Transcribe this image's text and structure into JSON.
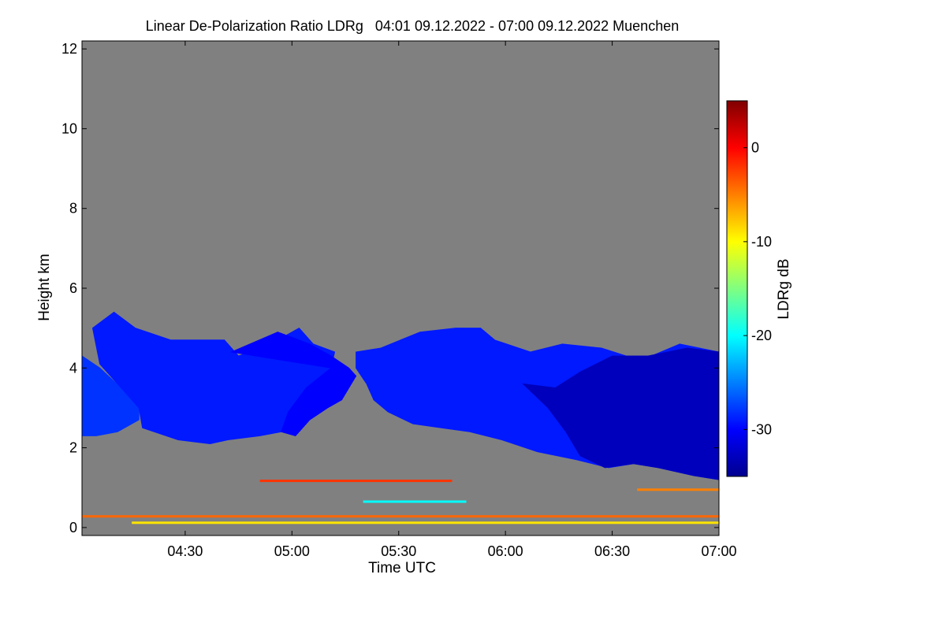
{
  "chart_data": {
    "type": "heatmap",
    "title": "Linear De-Polarization Ratio LDRg   04:01 09.12.2022 - 07:00 09.12.2022 Muenchen",
    "xlabel": "Time UTC",
    "ylabel": "Height km",
    "x_range_min": [
      241,
      420
    ],
    "x_ticks": [
      {
        "label": "04:30",
        "value": 270
      },
      {
        "label": "05:00",
        "value": 300
      },
      {
        "label": "05:30",
        "value": 330
      },
      {
        "label": "06:00",
        "value": 360
      },
      {
        "label": "06:30",
        "value": 390
      },
      {
        "label": "07:00",
        "value": 420
      }
    ],
    "ylim": [
      -0.2,
      12.2
    ],
    "y_ticks": [
      0,
      2,
      4,
      6,
      8,
      10,
      12
    ],
    "colorbar": {
      "label": "LDRg dB",
      "range": [
        -35,
        5
      ],
      "ticks": [
        0,
        -10,
        -20,
        -30
      ]
    },
    "background_color": "#808080",
    "cloud_regions": [
      {
        "name": "early-cloud",
        "ldr_db": -28,
        "points": [
          [
            241,
            4.3
          ],
          [
            246,
            4.0
          ],
          [
            252,
            3.5
          ],
          [
            257,
            3.0
          ],
          [
            257,
            2.7
          ],
          [
            251,
            2.4
          ],
          [
            245,
            2.3
          ],
          [
            241,
            2.3
          ]
        ]
      },
      {
        "name": "cirrus-fallstreak-1",
        "ldr_db": -29,
        "points": [
          [
            244,
            5.0
          ],
          [
            250,
            5.4
          ],
          [
            256,
            5.0
          ],
          [
            266,
            4.7
          ],
          [
            281,
            4.7
          ],
          [
            285,
            4.3
          ],
          [
            294,
            4.6
          ],
          [
            302,
            5.0
          ],
          [
            306,
            4.6
          ],
          [
            312,
            4.4
          ],
          [
            311,
            4.0
          ],
          [
            304,
            3.5
          ],
          [
            299,
            2.9
          ],
          [
            297,
            2.4
          ],
          [
            291,
            2.3
          ],
          [
            282,
            2.2
          ],
          [
            277,
            2.1
          ],
          [
            268,
            2.2
          ],
          [
            258,
            2.5
          ],
          [
            257,
            3.0
          ],
          [
            252,
            3.5
          ],
          [
            246,
            4.1
          ]
        ]
      },
      {
        "name": "cirrus-fallstreak-2",
        "ldr_db": -30,
        "points": [
          [
            283,
            4.4
          ],
          [
            296,
            4.9
          ],
          [
            305,
            4.6
          ],
          [
            311,
            4.3
          ],
          [
            316,
            4.0
          ],
          [
            318,
            3.8
          ],
          [
            314,
            3.2
          ],
          [
            310,
            3.0
          ],
          [
            305,
            2.7
          ],
          [
            301,
            2.3
          ],
          [
            297,
            2.4
          ],
          [
            299,
            2.9
          ],
          [
            304,
            3.5
          ],
          [
            311,
            4.0
          ]
        ]
      },
      {
        "name": "cirrus-fallstreak-3",
        "ldr_db": -29,
        "points": [
          [
            318,
            4.4
          ],
          [
            325,
            4.5
          ],
          [
            336,
            4.9
          ],
          [
            346,
            5.0
          ],
          [
            353,
            5.0
          ],
          [
            357,
            4.7
          ],
          [
            367,
            4.4
          ],
          [
            376,
            4.6
          ],
          [
            387,
            4.5
          ],
          [
            394,
            4.3
          ],
          [
            401,
            4.3
          ],
          [
            409,
            4.6
          ],
          [
            420,
            4.4
          ],
          [
            420,
            1.2
          ],
          [
            413,
            1.3
          ],
          [
            403,
            1.5
          ],
          [
            396,
            1.6
          ],
          [
            389,
            1.5
          ],
          [
            380,
            1.7
          ],
          [
            369,
            1.9
          ],
          [
            359,
            2.2
          ],
          [
            350,
            2.4
          ],
          [
            342,
            2.5
          ],
          [
            334,
            2.6
          ],
          [
            327,
            2.9
          ],
          [
            323,
            3.2
          ],
          [
            321,
            3.6
          ],
          [
            318,
            4.0
          ]
        ]
      },
      {
        "name": "dense-lower-cloud",
        "ldr_db": -33,
        "points": [
          [
            365,
            3.6
          ],
          [
            374,
            3.5
          ],
          [
            381,
            3.9
          ],
          [
            390,
            4.3
          ],
          [
            400,
            4.3
          ],
          [
            411,
            4.5
          ],
          [
            420,
            4.4
          ],
          [
            420,
            1.2
          ],
          [
            413,
            1.3
          ],
          [
            403,
            1.5
          ],
          [
            396,
            1.6
          ],
          [
            388,
            1.5
          ],
          [
            381,
            1.8
          ],
          [
            377,
            2.4
          ],
          [
            372,
            3.0
          ]
        ]
      }
    ],
    "layers": [
      {
        "name": "surface-layer",
        "ldr_db": -4,
        "t_start": 241,
        "t_end": 420,
        "height": 0.28
      },
      {
        "name": "low-aerosol-layer",
        "ldr_db": -2,
        "t_start": 291,
        "t_end": 345,
        "height": 1.17
      },
      {
        "name": "broken-layer",
        "ldr_db": -5,
        "t_start": 397,
        "t_end": 420,
        "height": 0.95
      },
      {
        "name": "ground-speckle",
        "ldr_db": -9,
        "t_start": 255,
        "t_end": 420,
        "height": 0.12
      },
      {
        "name": "thin-cyan-layer",
        "ldr_db": -20,
        "t_start": 320,
        "t_end": 349,
        "height": 0.65
      }
    ]
  }
}
